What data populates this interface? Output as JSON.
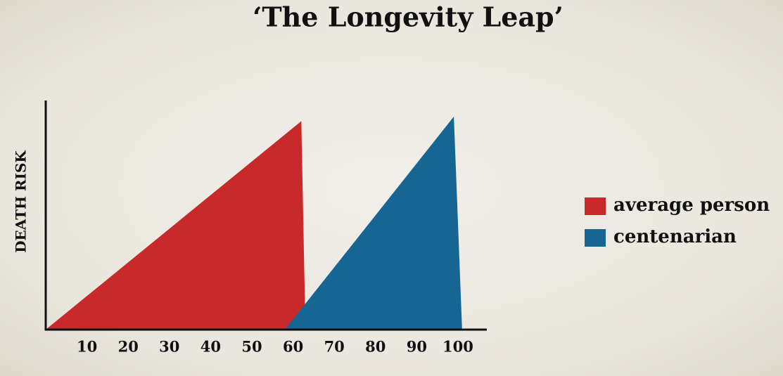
{
  "chart_data": {
    "type": "area",
    "title": "‘The Longevity Leap’",
    "y_label": "DEATH RISK",
    "xlim": [
      0,
      107
    ],
    "xticks": [
      10,
      20,
      30,
      40,
      50,
      60,
      70,
      80,
      90,
      100
    ],
    "ylim": [
      0,
      1
    ],
    "legend": "right",
    "series": [
      {
        "name": "average person",
        "color": "#c8292b",
        "x": [
          0,
          62,
          63
        ],
        "values": [
          0,
          0.91,
          0
        ]
      },
      {
        "name": "centenarian",
        "color": "#176593",
        "x": [
          58,
          99,
          101
        ],
        "values": [
          0,
          0.93,
          0
        ]
      }
    ]
  }
}
